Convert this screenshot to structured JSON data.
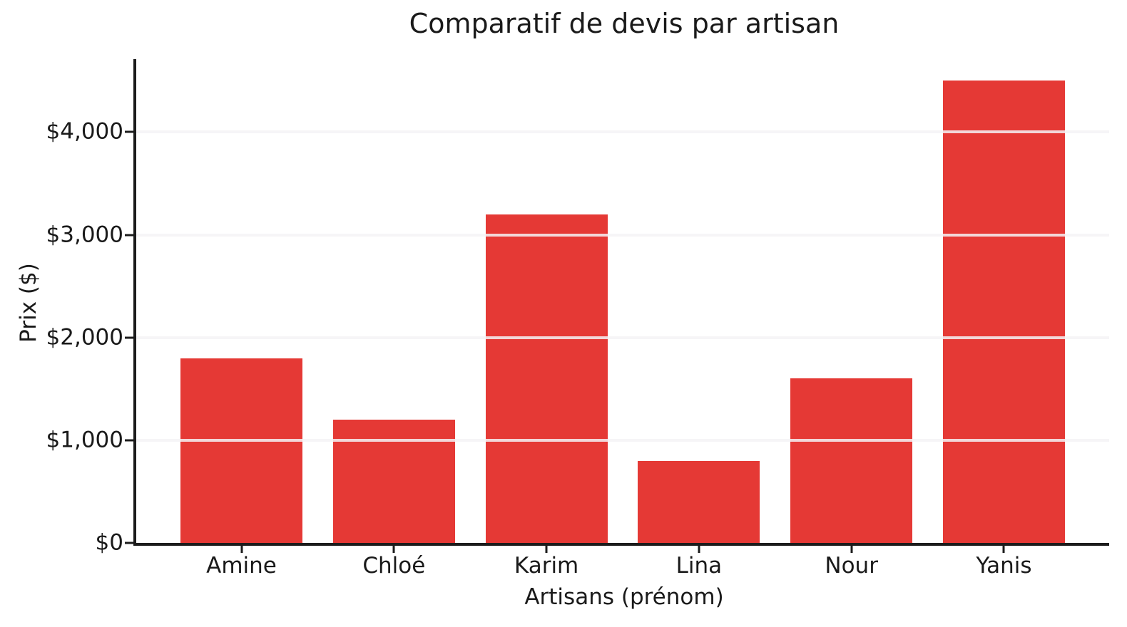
{
  "chart_data": {
    "type": "bar",
    "title": "Comparatif de devis par artisan",
    "xlabel": "Artisans (prénom)",
    "ylabel": "Prix ($)",
    "categories": [
      "Amine",
      "Chloé",
      "Karim",
      "Lina",
      "Nour",
      "Yanis"
    ],
    "values": [
      1800,
      1200,
      3200,
      800,
      1600,
      4500
    ],
    "yticks": [
      0,
      1000,
      2000,
      3000,
      4000
    ],
    "ytick_labels": [
      "$0",
      "$1,000",
      "$2,000",
      "$3,000",
      "$4,000"
    ],
    "ylim": [
      0,
      4710
    ],
    "grid": true,
    "legend_position": "none",
    "bar_color": "#e53935"
  },
  "colors": {
    "bar": "#e53935",
    "text": "#1a1a1a",
    "spine": "#1c1c1c",
    "gridline": "rgba(244,243,246,0.85)",
    "background": "#ffffff"
  }
}
